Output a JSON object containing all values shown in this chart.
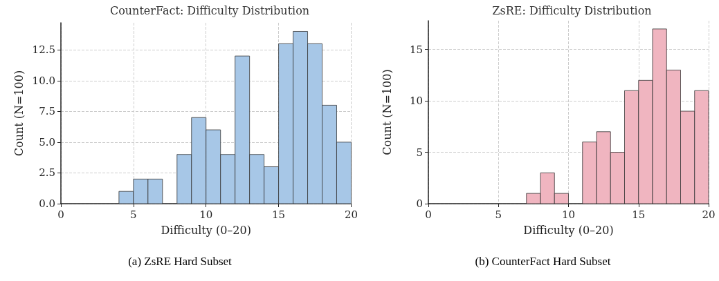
{
  "chart_data": [
    {
      "type": "histogram",
      "title": "CounterFact: Difficulty Distribution",
      "xlabel": "Difficulty (0–20)",
      "ylabel": "Count (N=100)",
      "color": "#a7c7e7",
      "bins": [
        0,
        1,
        2,
        3,
        4,
        5,
        6,
        7,
        8,
        9,
        10,
        11,
        12,
        13,
        14,
        15,
        16,
        17,
        18,
        19,
        20
      ],
      "values": [
        0,
        0,
        0,
        0,
        1,
        2,
        2,
        0,
        4,
        7,
        6,
        4,
        12,
        4,
        3,
        13,
        14,
        13,
        8,
        5
      ],
      "xlim": [
        0,
        20
      ],
      "xticks": [
        0,
        5,
        10,
        15,
        20
      ],
      "ylim": [
        0,
        14.7
      ],
      "yticks": [
        {
          "value": 0,
          "label": "0.0"
        },
        {
          "value": 2.5,
          "label": "2.5"
        },
        {
          "value": 5,
          "label": "5.0"
        },
        {
          "value": 7.5,
          "label": "7.5"
        },
        {
          "value": 10,
          "label": "10.0"
        },
        {
          "value": 12.5,
          "label": "12.5"
        }
      ],
      "grid": true,
      "annotations": [
        "(a) ZsRE Hard Subset"
      ]
    },
    {
      "type": "histogram",
      "title": "ZsRE: Difficulty Distribution",
      "xlabel": "Difficulty (0–20)",
      "ylabel": "Count (N=100)",
      "color": "#f0b5c0",
      "bins": [
        0,
        1,
        2,
        3,
        4,
        5,
        6,
        7,
        8,
        9,
        10,
        11,
        12,
        13,
        14,
        15,
        16,
        17,
        18,
        19,
        20
      ],
      "values": [
        0,
        0,
        0,
        0,
        0,
        0,
        0,
        1,
        3,
        1,
        0,
        6,
        7,
        5,
        11,
        12,
        17,
        13,
        9,
        11
      ],
      "xlim": [
        0,
        20
      ],
      "xticks": [
        0,
        5,
        10,
        15,
        20
      ],
      "ylim": [
        0,
        17.8
      ],
      "yticks": [
        0,
        5,
        10,
        15
      ],
      "grid": true,
      "annotations": [
        "(b) CounterFact Hard Subset"
      ]
    }
  ]
}
